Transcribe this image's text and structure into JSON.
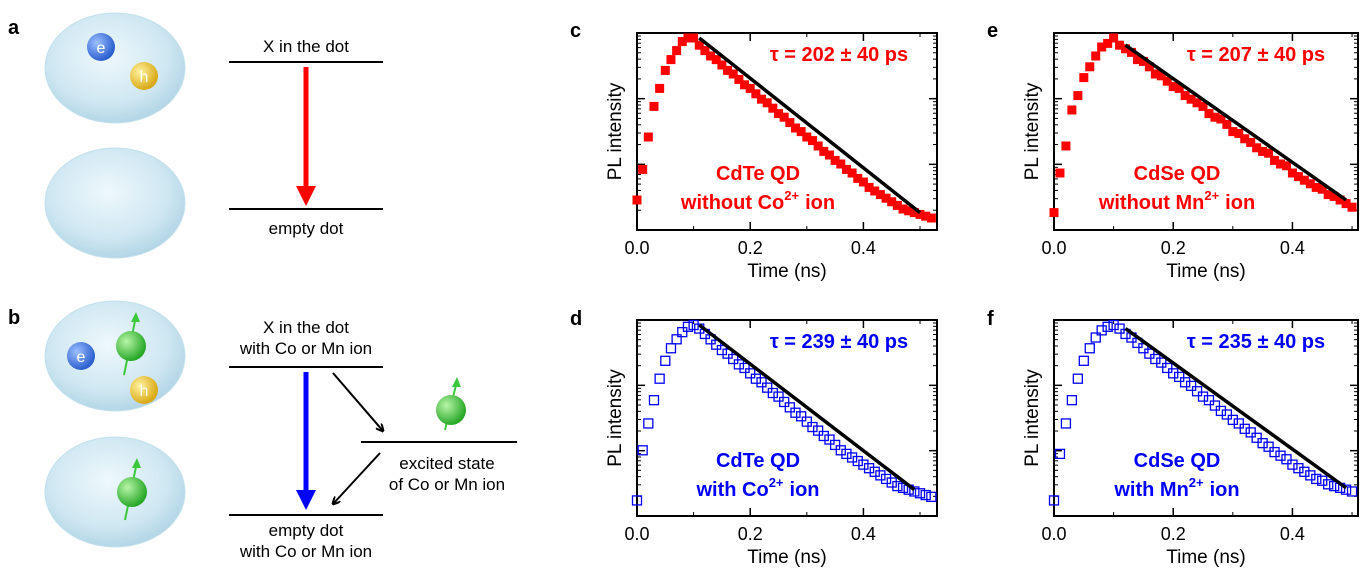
{
  "figure": {
    "panel_labels": [
      "a",
      "b",
      "c",
      "d",
      "e",
      "f"
    ],
    "schematic_a": {
      "upper_level": "X in the dot",
      "lower_level": "empty dot",
      "carriers": [
        "e",
        "h"
      ],
      "arrow_color": "#ff0000"
    },
    "schematic_b": {
      "upper_level": [
        "X in the dot",
        "with Co or Mn ion"
      ],
      "lower_level": [
        "empty dot",
        "with Co or Mn ion"
      ],
      "intermediate_level": [
        "excited state",
        "of Co or Mn ion"
      ],
      "carriers": [
        "e",
        "h"
      ],
      "arrow_color": "#0000ff"
    },
    "colors": {
      "red": "#ff0000",
      "blue": "#0000ff",
      "electron": "#3a6fd8",
      "hole": "#e8c22a",
      "ion": "#3cc83c",
      "dot": "#cfe7f2"
    }
  },
  "chart_data": [
    {
      "panel": "c",
      "type": "scatter",
      "marker": "filled-square",
      "color": "#ff0000",
      "xlabel": "Time (ns)",
      "ylabel": "PL intensity",
      "yscale": "log",
      "xlim": [
        0,
        0.53
      ],
      "xticks": [
        0.0,
        0.2,
        0.4
      ],
      "xticklabels": [
        "0.0",
        "0.2",
        "0.4"
      ],
      "annotation": "τ = 202 ± 40 ps",
      "label_lines": [
        "CdTe QD",
        "without Co",
        "2+",
        "ion"
      ],
      "fit": {
        "x": [
          0.11,
          0.5
        ],
        "tau_ps": 202
      },
      "x": [
        0.0,
        0.01,
        0.02,
        0.03,
        0.04,
        0.05,
        0.06,
        0.07,
        0.08,
        0.09,
        0.1,
        0.11,
        0.12,
        0.13,
        0.14,
        0.15,
        0.16,
        0.17,
        0.18,
        0.19,
        0.2,
        0.21,
        0.22,
        0.23,
        0.24,
        0.25,
        0.26,
        0.27,
        0.28,
        0.29,
        0.3,
        0.31,
        0.32,
        0.33,
        0.34,
        0.35,
        0.36,
        0.37,
        0.38,
        0.39,
        0.4,
        0.41,
        0.42,
        0.43,
        0.44,
        0.45,
        0.46,
        0.47,
        0.48,
        0.49,
        0.5,
        0.51,
        0.52
      ],
      "y": [
        0.1,
        0.27,
        0.45,
        0.62,
        0.72,
        0.82,
        0.88,
        0.93,
        0.98,
        1.0,
        1.0,
        0.96,
        0.93,
        0.9,
        0.88,
        0.85,
        0.82,
        0.8,
        0.77,
        0.74,
        0.72,
        0.69,
        0.66,
        0.64,
        0.61,
        0.58,
        0.56,
        0.53,
        0.5,
        0.48,
        0.45,
        0.43,
        0.4,
        0.37,
        0.35,
        0.32,
        0.3,
        0.27,
        0.25,
        0.22,
        0.2,
        0.17,
        0.15,
        0.13,
        0.11,
        0.09,
        0.07,
        0.05,
        0.04,
        0.03,
        0.02,
        0.01,
        0.0
      ]
    },
    {
      "panel": "d",
      "type": "scatter",
      "marker": "open-square",
      "color": "#0000ff",
      "xlabel": "Time (ns)",
      "ylabel": "PL intensity",
      "yscale": "log",
      "xlim": [
        0,
        0.53
      ],
      "xticks": [
        0.0,
        0.2,
        0.4
      ],
      "xticklabels": [
        "0.0",
        "0.2",
        "0.4"
      ],
      "annotation": "τ = 239 ± 40 ps",
      "label_lines": [
        "CdTe QD",
        "with Co",
        "2+",
        "ion"
      ],
      "fit": {
        "x": [
          0.11,
          0.49
        ],
        "tau_ps": 239
      },
      "x": [
        0.0,
        0.01,
        0.02,
        0.03,
        0.04,
        0.05,
        0.06,
        0.07,
        0.08,
        0.09,
        0.1,
        0.11,
        0.12,
        0.13,
        0.14,
        0.15,
        0.16,
        0.17,
        0.18,
        0.19,
        0.2,
        0.21,
        0.22,
        0.23,
        0.24,
        0.25,
        0.26,
        0.27,
        0.28,
        0.29,
        0.3,
        0.31,
        0.32,
        0.33,
        0.34,
        0.35,
        0.36,
        0.37,
        0.38,
        0.39,
        0.4,
        0.41,
        0.42,
        0.43,
        0.44,
        0.45,
        0.46,
        0.47,
        0.48,
        0.49,
        0.5,
        0.51,
        0.52
      ],
      "y": [
        0.02,
        0.3,
        0.45,
        0.58,
        0.7,
        0.8,
        0.87,
        0.92,
        0.96,
        0.99,
        1.0,
        0.98,
        0.95,
        0.92,
        0.89,
        0.86,
        0.84,
        0.81,
        0.78,
        0.76,
        0.73,
        0.7,
        0.68,
        0.65,
        0.62,
        0.6,
        0.57,
        0.54,
        0.51,
        0.49,
        0.46,
        0.43,
        0.41,
        0.38,
        0.36,
        0.33,
        0.3,
        0.28,
        0.26,
        0.24,
        0.22,
        0.2,
        0.18,
        0.16,
        0.14,
        0.12,
        0.1,
        0.09,
        0.08,
        0.07,
        0.06,
        0.05,
        0.04
      ]
    },
    {
      "panel": "e",
      "type": "scatter",
      "marker": "filled-square",
      "color": "#ff0000",
      "xlabel": "Time (ns)",
      "ylabel": "PL intensity",
      "yscale": "log",
      "xlim": [
        0,
        0.51
      ],
      "xticks": [
        0.0,
        0.2,
        0.4
      ],
      "xticklabels": [
        "0.0",
        "0.2",
        "0.4"
      ],
      "annotation": "τ = 207 ± 40 ps",
      "label_lines": [
        "CdSe QD",
        "without Mn",
        "2+",
        "ion"
      ],
      "fit": {
        "x": [
          0.12,
          0.49
        ],
        "tau_ps": 207
      },
      "x": [
        0.0,
        0.01,
        0.02,
        0.03,
        0.04,
        0.05,
        0.06,
        0.07,
        0.08,
        0.09,
        0.1,
        0.11,
        0.12,
        0.13,
        0.14,
        0.15,
        0.16,
        0.17,
        0.18,
        0.19,
        0.2,
        0.21,
        0.22,
        0.23,
        0.24,
        0.25,
        0.26,
        0.27,
        0.28,
        0.29,
        0.3,
        0.31,
        0.32,
        0.33,
        0.34,
        0.35,
        0.36,
        0.37,
        0.38,
        0.39,
        0.4,
        0.41,
        0.42,
        0.43,
        0.44,
        0.45,
        0.46,
        0.47,
        0.48,
        0.49,
        0.5
      ],
      "y": [
        0.03,
        0.25,
        0.4,
        0.6,
        0.68,
        0.78,
        0.84,
        0.9,
        0.95,
        0.97,
        1.0,
        0.96,
        0.94,
        0.92,
        0.88,
        0.87,
        0.84,
        0.8,
        0.79,
        0.76,
        0.73,
        0.72,
        0.68,
        0.66,
        0.64,
        0.62,
        0.58,
        0.56,
        0.55,
        0.52,
        0.48,
        0.47,
        0.44,
        0.42,
        0.39,
        0.37,
        0.36,
        0.32,
        0.3,
        0.29,
        0.25,
        0.23,
        0.21,
        0.19,
        0.17,
        0.16,
        0.13,
        0.12,
        0.1,
        0.08,
        0.06
      ]
    },
    {
      "panel": "f",
      "type": "scatter",
      "marker": "open-square",
      "color": "#0000ff",
      "xlabel": "Time (ns)",
      "ylabel": "PL intensity",
      "yscale": "log",
      "xlim": [
        0,
        0.51
      ],
      "xticks": [
        0.0,
        0.2,
        0.4
      ],
      "xticklabels": [
        "0.0",
        "0.2",
        "0.4"
      ],
      "annotation": "τ = 235 ± 40 ps",
      "label_lines": [
        "CdSe QD",
        "with Mn",
        "2+",
        "ion"
      ],
      "fit": {
        "x": [
          0.12,
          0.49
        ],
        "tau_ps": 235
      },
      "x": [
        0.0,
        0.01,
        0.02,
        0.03,
        0.04,
        0.05,
        0.06,
        0.07,
        0.08,
        0.09,
        0.1,
        0.11,
        0.12,
        0.13,
        0.14,
        0.15,
        0.16,
        0.17,
        0.18,
        0.19,
        0.2,
        0.21,
        0.22,
        0.23,
        0.24,
        0.25,
        0.26,
        0.27,
        0.28,
        0.29,
        0.3,
        0.31,
        0.32,
        0.33,
        0.34,
        0.35,
        0.36,
        0.37,
        0.38,
        0.39,
        0.4,
        0.41,
        0.42,
        0.43,
        0.44,
        0.45,
        0.46,
        0.47,
        0.48,
        0.49,
        0.5
      ],
      "y": [
        0.02,
        0.28,
        0.45,
        0.58,
        0.7,
        0.8,
        0.87,
        0.93,
        0.97,
        0.99,
        1.0,
        0.98,
        0.95,
        0.93,
        0.9,
        0.87,
        0.84,
        0.81,
        0.79,
        0.76,
        0.73,
        0.71,
        0.68,
        0.66,
        0.63,
        0.6,
        0.58,
        0.55,
        0.52,
        0.5,
        0.47,
        0.45,
        0.42,
        0.4,
        0.37,
        0.34,
        0.32,
        0.29,
        0.27,
        0.25,
        0.22,
        0.2,
        0.18,
        0.16,
        0.14,
        0.13,
        0.11,
        0.1,
        0.09,
        0.08,
        0.07
      ]
    }
  ]
}
